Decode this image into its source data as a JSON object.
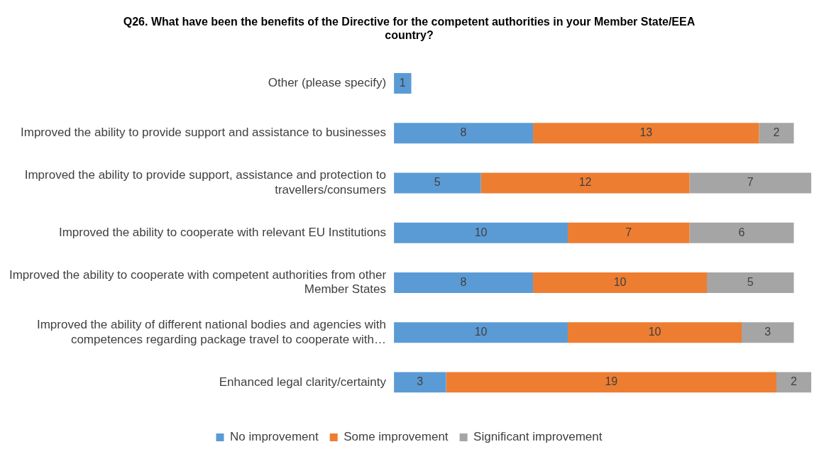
{
  "chart_data": {
    "type": "bar",
    "orientation": "horizontal",
    "stacked": true,
    "title": "Q26. What have been the benefits of the Directive for the competent authorities in your Member State/EEA country?",
    "categories": [
      "Other (please specify)",
      "Improved the ability to provide support and assistance to businesses",
      "Improved the ability to provide support, assistance and protection to travellers/consumers",
      "Improved the ability to cooperate with relevant EU Institutions",
      "Improved the ability to cooperate with competent authorities from other Member States",
      "Improved the ability of different national bodies and agencies with competences regarding package travel to cooperate with…",
      "Enhanced legal clarity/certainty"
    ],
    "series": [
      {
        "name": "No improvement",
        "color": "#5b9bd5",
        "values": [
          1,
          8,
          5,
          10,
          8,
          10,
          3
        ]
      },
      {
        "name": "Some improvement",
        "color": "#ed7d31",
        "values": [
          null,
          13,
          12,
          7,
          10,
          10,
          19
        ]
      },
      {
        "name": "Significant improvement",
        "color": "#a5a5a5",
        "values": [
          null,
          2,
          7,
          6,
          5,
          3,
          2
        ]
      }
    ],
    "data_labels": true,
    "tick_labels": "y",
    "legend": "bottom"
  }
}
